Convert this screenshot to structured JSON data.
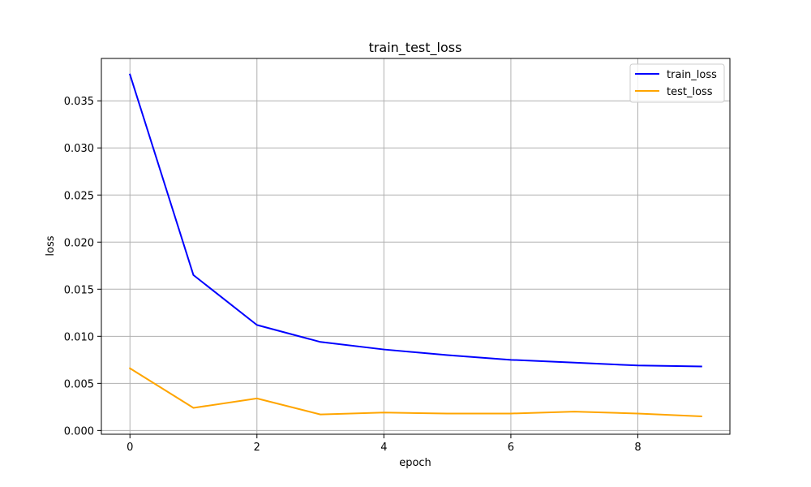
{
  "chart_data": {
    "type": "line",
    "title": "train_test_loss",
    "xlabel": "epoch",
    "ylabel": "loss",
    "x": [
      0,
      1,
      2,
      3,
      4,
      5,
      6,
      7,
      8,
      9
    ],
    "xlim": [
      -0.45,
      9.45
    ],
    "ylim": [
      -0.0004,
      0.0395
    ],
    "xticks": [
      0,
      2,
      4,
      6,
      8
    ],
    "yticks": [
      0.0,
      0.005,
      0.01,
      0.015,
      0.02,
      0.025,
      0.03,
      0.035
    ],
    "ytick_labels": [
      "0.000",
      "0.005",
      "0.010",
      "0.015",
      "0.020",
      "0.025",
      "0.030",
      "0.035"
    ],
    "grid": true,
    "legend_position": "top-right",
    "series": [
      {
        "name": "train_loss",
        "color": "#0000ff",
        "values": [
          0.0378,
          0.0165,
          0.0112,
          0.0094,
          0.0086,
          0.008,
          0.0075,
          0.0072,
          0.0069,
          0.0068
        ]
      },
      {
        "name": "test_loss",
        "color": "#ffa500",
        "values": [
          0.0066,
          0.0024,
          0.0034,
          0.0017,
          0.0019,
          0.0018,
          0.0018,
          0.002,
          0.0018,
          0.0015
        ]
      }
    ]
  }
}
